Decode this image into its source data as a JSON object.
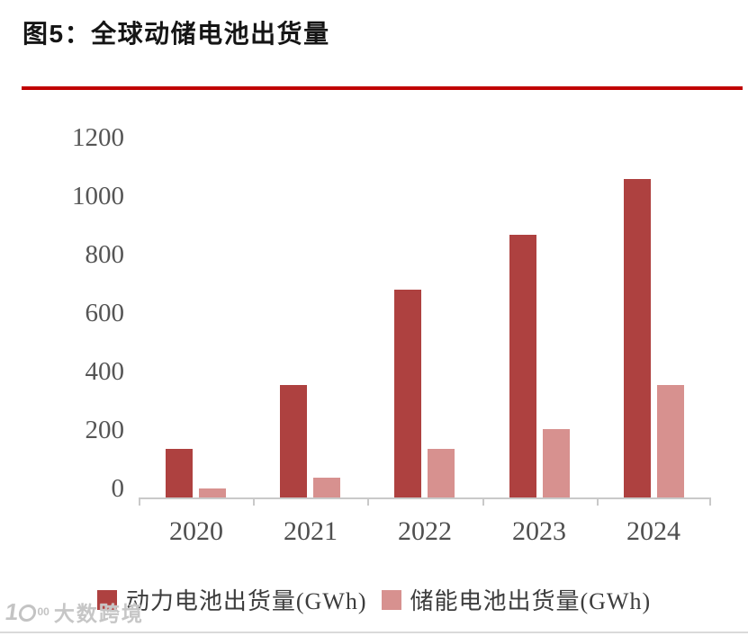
{
  "page": {
    "title": "图5：全球动储电池出货量",
    "watermark": {
      "logo_prefix": "1",
      "logo_superscript": "00",
      "name": "大数跨境"
    }
  },
  "colors": {
    "title_rule_red": "#C00000",
    "power_series": "#AE4140",
    "storage_series": "#D7918F",
    "axis_line": "#C9C9C9",
    "tick_label_gray": "#555555",
    "watermark_gray": "#C3C3C3"
  },
  "chart_data": {
    "type": "bar",
    "title": "图5：全球动储电池出货量",
    "categories": [
      "2020",
      "2021",
      "2022",
      "2023",
      "2024"
    ],
    "series": [
      {
        "key": "power",
        "name": "动力电池出货量(GWh)",
        "color": "#AE4140",
        "values": [
          160,
          370,
          685,
          865,
          1050
        ]
      },
      {
        "key": "storage",
        "name": "储能电池出货量(GWh)",
        "color": "#D7918F",
        "values": [
          30,
          65,
          160,
          225,
          370
        ]
      }
    ],
    "xlabel": "",
    "ylabel": "",
    "ylim": [
      0,
      1200
    ],
    "yticks": [
      0,
      200,
      400,
      600,
      800,
      1000,
      1200
    ],
    "grid": false,
    "legend_position": "bottom"
  }
}
